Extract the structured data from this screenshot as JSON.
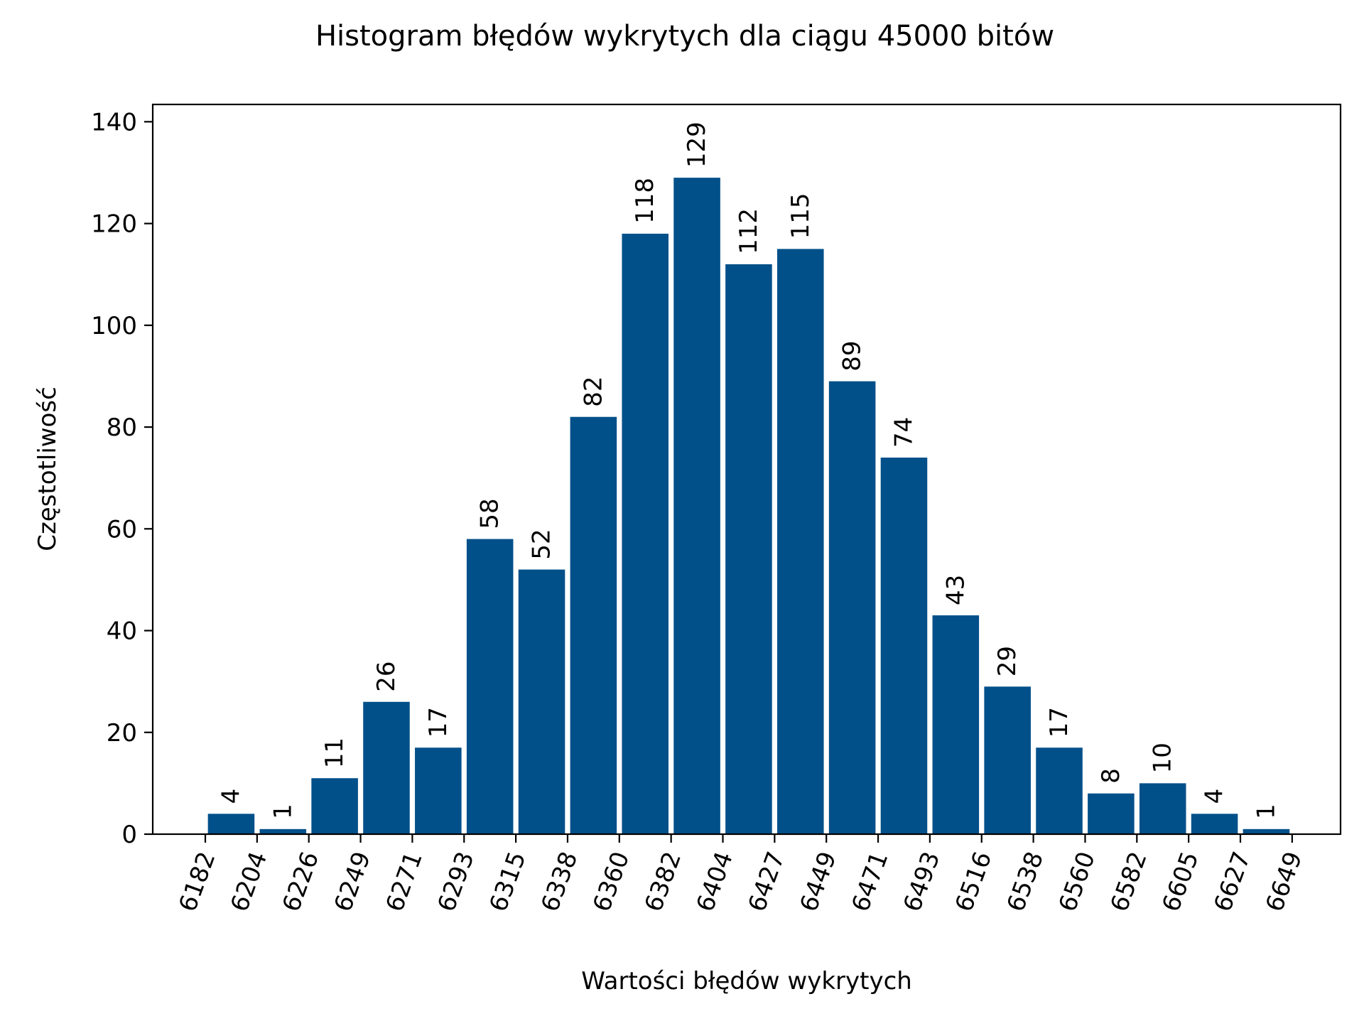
{
  "chart_data": {
    "type": "bar",
    "title": "Histogram błędów wykrytych dla ciągu 45000 bitów",
    "xlabel": "Wartości błędów wykrytych",
    "ylabel": "Częstotliwość",
    "bin_edges": [
      6182,
      6204,
      6226,
      6249,
      6271,
      6293,
      6315,
      6338,
      6360,
      6382,
      6404,
      6427,
      6449,
      6471,
      6493,
      6516,
      6538,
      6560,
      6582,
      6605,
      6627,
      6649
    ],
    "x_tick_labels": [
      "6182",
      "6204",
      "6226",
      "6249",
      "6271",
      "6293",
      "6315",
      "6338",
      "6360",
      "6382",
      "6404",
      "6427",
      "6449",
      "6471",
      "6493",
      "6516",
      "6538",
      "6560",
      "6582",
      "6605",
      "6627",
      "6649"
    ],
    "values": [
      4,
      1,
      11,
      26,
      17,
      58,
      52,
      82,
      118,
      129,
      112,
      115,
      89,
      74,
      43,
      29,
      17,
      8,
      10,
      4,
      1
    ],
    "data_labels": [
      "4",
      "1",
      "11",
      "26",
      "17",
      "58",
      "52",
      "82",
      "118",
      "129",
      "112",
      "115",
      "89",
      "74",
      "43",
      "29",
      "17",
      "8",
      "10",
      "4",
      "1"
    ],
    "y_ticks": [
      0,
      20,
      40,
      60,
      80,
      100,
      120,
      140
    ],
    "y_tick_labels": [
      "0",
      "20",
      "40",
      "60",
      "80",
      "100",
      "120",
      "140"
    ],
    "ylim": [
      0,
      143.4
    ],
    "x_tick_rotation": "diagonal",
    "bar_color": "#02508a",
    "grid": false,
    "legend": false
  }
}
